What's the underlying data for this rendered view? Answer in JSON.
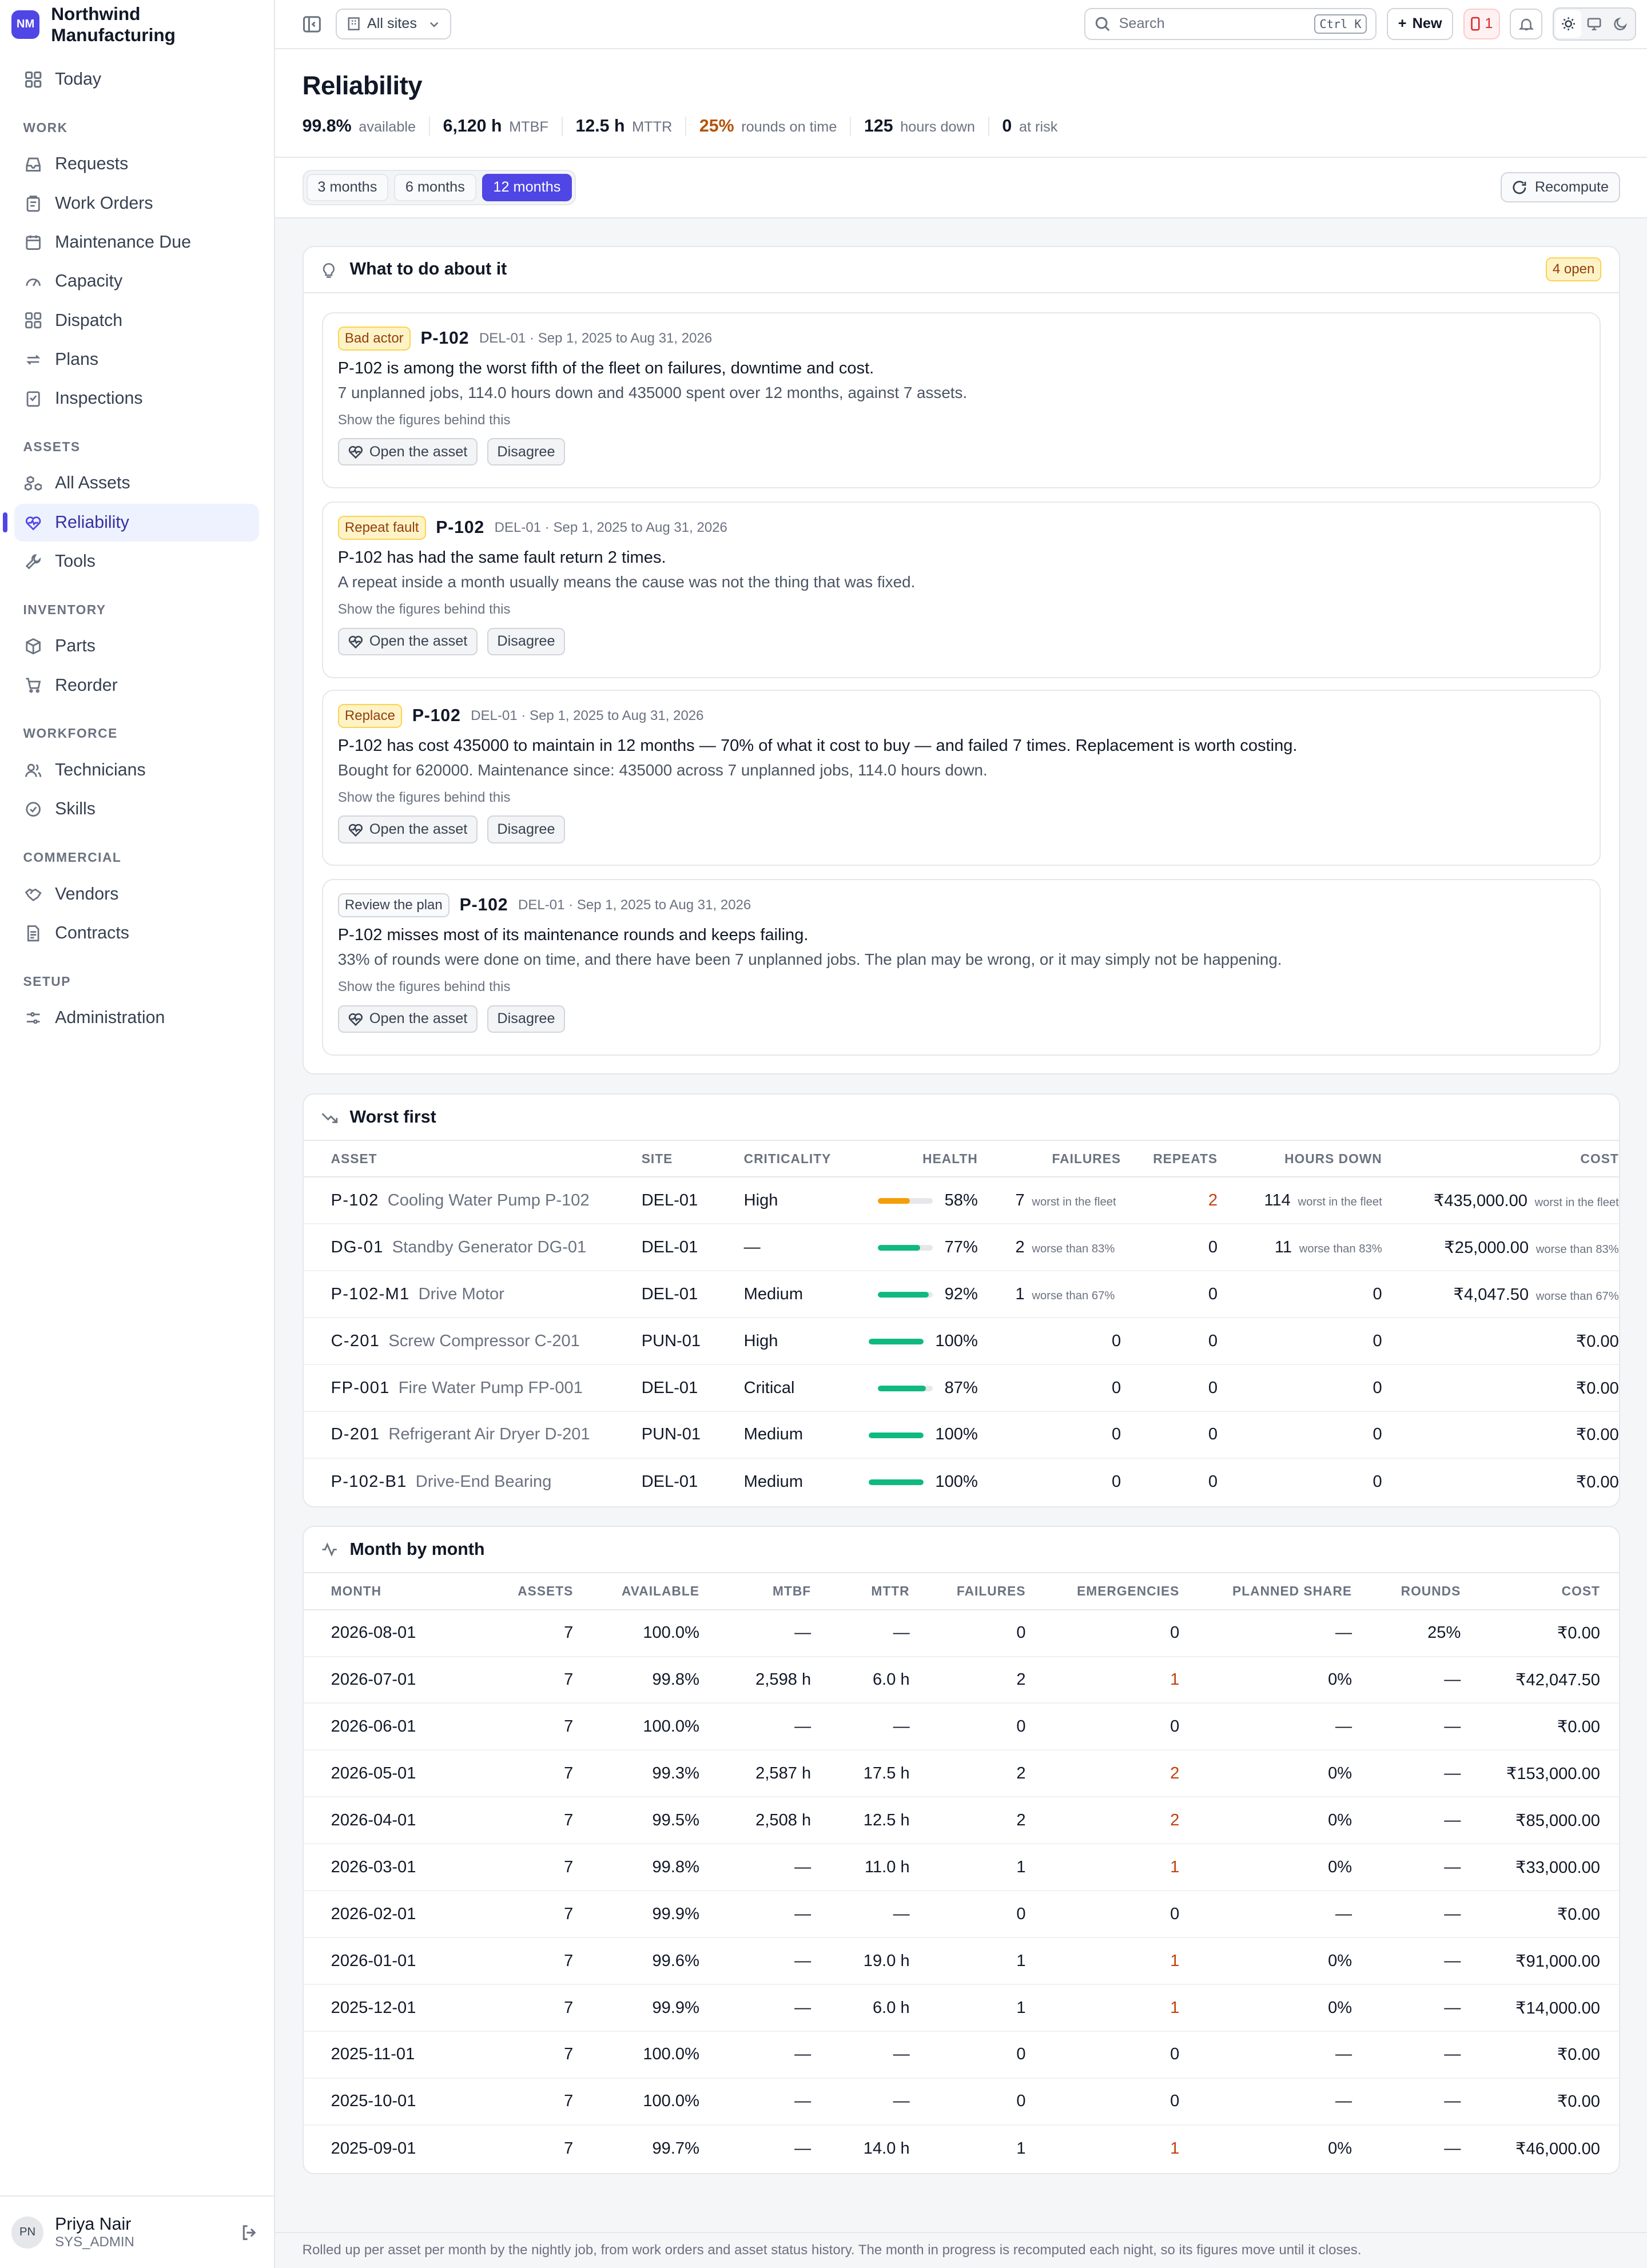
{
  "app": {
    "logo": "NM",
    "name": "Northwind Manufacturing"
  },
  "nav": {
    "today": "Today",
    "sections": [
      {
        "label": "WORK",
        "items": [
          {
            "label": "Requests",
            "icon": "inbox-icon"
          },
          {
            "label": "Work Orders",
            "icon": "clipboard-icon"
          },
          {
            "label": "Maintenance Due",
            "icon": "calendar-icon"
          },
          {
            "label": "Capacity",
            "icon": "gauge-icon"
          },
          {
            "label": "Dispatch",
            "icon": "grid-icon"
          },
          {
            "label": "Plans",
            "icon": "repeat-icon"
          },
          {
            "label": "Inspections",
            "icon": "checklist-icon"
          }
        ]
      },
      {
        "label": "ASSETS",
        "items": [
          {
            "label": "All Assets",
            "icon": "boxes-icon"
          },
          {
            "label": "Reliability",
            "icon": "heart-pulse-icon",
            "active": true
          },
          {
            "label": "Tools",
            "icon": "wrench-icon"
          }
        ]
      },
      {
        "label": "INVENTORY",
        "items": [
          {
            "label": "Parts",
            "icon": "package-icon"
          },
          {
            "label": "Reorder",
            "icon": "cart-icon"
          }
        ]
      },
      {
        "label": "WORKFORCE",
        "items": [
          {
            "label": "Technicians",
            "icon": "users-icon"
          },
          {
            "label": "Skills",
            "icon": "badge-check-icon"
          }
        ]
      },
      {
        "label": "COMMERCIAL",
        "items": [
          {
            "label": "Vendors",
            "icon": "handshake-icon"
          },
          {
            "label": "Contracts",
            "icon": "file-text-icon"
          }
        ]
      },
      {
        "label": "SETUP",
        "items": [
          {
            "label": "Administration",
            "icon": "sliders-icon"
          }
        ]
      }
    ]
  },
  "user": {
    "initials": "PN",
    "name": "Priya Nair",
    "role": "SYS_ADMIN"
  },
  "topbar": {
    "site_selector": "All sites",
    "search_placeholder": "Search",
    "search_shortcut": "Ctrl K",
    "new_label": "New",
    "alert_count": "1"
  },
  "page": {
    "title": "Reliability",
    "stats": [
      {
        "value": "99.8%",
        "label": "available"
      },
      {
        "value": "6,120 h",
        "label": "MTBF"
      },
      {
        "value": "12.5 h",
        "label": "MTTR"
      },
      {
        "value": "25%",
        "label": "rounds on time",
        "accent": "#b45309"
      },
      {
        "value": "125",
        "label": "hours down"
      },
      {
        "value": "0",
        "label": "at risk"
      }
    ],
    "periods": [
      "3 months",
      "6 months",
      "12 months"
    ],
    "selected_period": "12 months",
    "recompute_label": "Recompute"
  },
  "recommendations": {
    "title": "What to do about it",
    "open_badge": "4 open",
    "show_figures_label": "Show the figures behind this",
    "open_asset_label": "Open the asset",
    "disagree_label": "Disagree",
    "items": [
      {
        "tag": "Bad actor",
        "tag_style": "amber",
        "asset": "P-102",
        "meta": "DEL-01 · Sep 1, 2025 to Aug 31, 2026",
        "headline": "P-102 is among the worst fifth of the fleet on failures, downtime and cost.",
        "detail": "7 unplanned jobs, 114.0 hours down and 435000 spent over 12 months, against 7 assets."
      },
      {
        "tag": "Repeat fault",
        "tag_style": "amber",
        "asset": "P-102",
        "meta": "DEL-01 · Sep 1, 2025 to Aug 31, 2026",
        "headline": "P-102 has had the same fault return 2 times.",
        "detail": "A repeat inside a month usually means the cause was not the thing that was fixed."
      },
      {
        "tag": "Replace",
        "tag_style": "amber",
        "asset": "P-102",
        "meta": "DEL-01 · Sep 1, 2025 to Aug 31, 2026",
        "headline": "P-102 has cost 435000 to maintain in 12 months — 70% of what it cost to buy — and failed 7 times. Replacement is worth costing.",
        "detail": "Bought for 620000. Maintenance since: 435000 across 7 unplanned jobs, 114.0 hours down."
      },
      {
        "tag": "Review the plan",
        "tag_style": "gray",
        "asset": "P-102",
        "meta": "DEL-01 · Sep 1, 2025 to Aug 31, 2026",
        "headline": "P-102 misses most of its maintenance rounds and keeps failing.",
        "detail": "33% of rounds were done on time, and there have been 7 unplanned jobs. The plan may be wrong, or it may simply not be happening."
      }
    ]
  },
  "worst": {
    "title": "Worst first",
    "columns": [
      "ASSET",
      "SITE",
      "CRITICALITY",
      "HEALTH",
      "FAILURES",
      "REPEATS",
      "HOURS DOWN",
      "COST"
    ],
    "rows": [
      {
        "code": "P-102",
        "name": "Cooling Water Pump P-102",
        "site": "DEL-01",
        "crit": "High",
        "health": 58,
        "health_text": "58%",
        "health_color": "#f59e0b",
        "failures": "7",
        "failures_note": "worst in the fleet",
        "repeats": "2",
        "repeats_color": "#c2410c",
        "down": "114",
        "down_note": "worst in the fleet",
        "cost": "₹435,000.00",
        "cost_note": "worst in the fleet"
      },
      {
        "code": "DG-01",
        "name": "Standby Generator DG-01",
        "site": "DEL-01",
        "crit": "—",
        "health": 77,
        "health_text": "77%",
        "health_color": "#10b981",
        "failures": "2",
        "failures_note": "worse than 83%",
        "repeats": "0",
        "down": "11",
        "down_note": "worse than 83%",
        "cost": "₹25,000.00",
        "cost_note": "worse than 83%"
      },
      {
        "code": "P-102-M1",
        "name": "Drive Motor",
        "site": "DEL-01",
        "crit": "Medium",
        "health": 92,
        "health_text": "92%",
        "health_color": "#10b981",
        "failures": "1",
        "failures_note": "worse than 67%",
        "repeats": "0",
        "down": "0",
        "down_note": "",
        "cost": "₹4,047.50",
        "cost_note": "worse than 67%"
      },
      {
        "code": "C-201",
        "name": "Screw Compressor C-201",
        "site": "PUN-01",
        "crit": "High",
        "health": 100,
        "health_text": "100%",
        "health_color": "#10b981",
        "failures": "0",
        "failures_note": "",
        "repeats": "0",
        "down": "0",
        "down_note": "",
        "cost": "₹0.00",
        "cost_note": ""
      },
      {
        "code": "FP-001",
        "name": "Fire Water Pump FP-001",
        "site": "DEL-01",
        "crit": "Critical",
        "health": 87,
        "health_text": "87%",
        "health_color": "#10b981",
        "failures": "0",
        "failures_note": "",
        "repeats": "0",
        "down": "0",
        "down_note": "",
        "cost": "₹0.00",
        "cost_note": ""
      },
      {
        "code": "D-201",
        "name": "Refrigerant Air Dryer D-201",
        "site": "PUN-01",
        "crit": "Medium",
        "health": 100,
        "health_text": "100%",
        "health_color": "#10b981",
        "failures": "0",
        "failures_note": "",
        "repeats": "0",
        "down": "0",
        "down_note": "",
        "cost": "₹0.00",
        "cost_note": ""
      },
      {
        "code": "P-102-B1",
        "name": "Drive-End Bearing",
        "site": "DEL-01",
        "crit": "Medium",
        "health": 100,
        "health_text": "100%",
        "health_color": "#10b981",
        "failures": "0",
        "failures_note": "",
        "repeats": "0",
        "down": "0",
        "down_note": "",
        "cost": "₹0.00",
        "cost_note": ""
      }
    ]
  },
  "monthly": {
    "title": "Month by month",
    "columns": [
      "MONTH",
      "ASSETS",
      "AVAILABLE",
      "MTBF",
      "MTTR",
      "FAILURES",
      "EMERGENCIES",
      "PLANNED SHARE",
      "ROUNDS",
      "COST"
    ],
    "rows": [
      [
        "2026-08-01",
        "7",
        "100.0%",
        "—",
        "—",
        "0",
        "0",
        "—",
        "25%",
        "₹0.00"
      ],
      [
        "2026-07-01",
        "7",
        "99.8%",
        "2,598 h",
        "6.0 h",
        "2",
        "1",
        "0%",
        "—",
        "₹42,047.50"
      ],
      [
        "2026-06-01",
        "7",
        "100.0%",
        "—",
        "—",
        "0",
        "0",
        "—",
        "—",
        "₹0.00"
      ],
      [
        "2026-05-01",
        "7",
        "99.3%",
        "2,587 h",
        "17.5 h",
        "2",
        "2",
        "0%",
        "—",
        "₹153,000.00"
      ],
      [
        "2026-04-01",
        "7",
        "99.5%",
        "2,508 h",
        "12.5 h",
        "2",
        "2",
        "0%",
        "—",
        "₹85,000.00"
      ],
      [
        "2026-03-01",
        "7",
        "99.8%",
        "—",
        "11.0 h",
        "1",
        "1",
        "0%",
        "—",
        "₹33,000.00"
      ],
      [
        "2026-02-01",
        "7",
        "99.9%",
        "—",
        "—",
        "0",
        "0",
        "—",
        "—",
        "₹0.00"
      ],
      [
        "2026-01-01",
        "7",
        "99.6%",
        "—",
        "19.0 h",
        "1",
        "1",
        "0%",
        "—",
        "₹91,000.00"
      ],
      [
        "2025-12-01",
        "7",
        "99.9%",
        "—",
        "6.0 h",
        "1",
        "1",
        "0%",
        "—",
        "₹14,000.00"
      ],
      [
        "2025-11-01",
        "7",
        "100.0%",
        "—",
        "—",
        "0",
        "0",
        "—",
        "—",
        "₹0.00"
      ],
      [
        "2025-10-01",
        "7",
        "100.0%",
        "—",
        "—",
        "0",
        "0",
        "—",
        "—",
        "₹0.00"
      ],
      [
        "2025-09-01",
        "7",
        "99.7%",
        "—",
        "14.0 h",
        "1",
        "1",
        "0%",
        "—",
        "₹46,000.00"
      ]
    ]
  },
  "footer": "Rolled up per asset per month by the nightly job, from work orders and asset status history. The month in progress is recomputed each night, so its figures move until it closes."
}
